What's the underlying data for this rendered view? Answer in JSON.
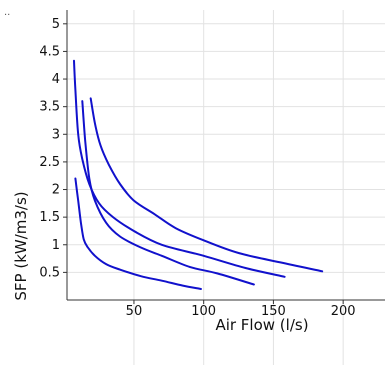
{
  "corner_mark": "..",
  "chart_data": {
    "type": "line",
    "title": "",
    "xlabel": "Air Flow (l/s)",
    "ylabel": "SFP (kW/m3/s)",
    "xlim": [
      2,
      230
    ],
    "ylim": [
      0,
      5.25
    ],
    "x_ticks": [
      50,
      100,
      150,
      200
    ],
    "x_tick_labels": [
      "50",
      "100",
      "150",
      "200"
    ],
    "y_ticks": [
      0.5,
      1,
      1.5,
      2,
      2.5,
      3,
      3.5,
      4,
      4.5,
      5
    ],
    "y_tick_labels": [
      "0.5",
      "1",
      "1.5",
      "2",
      "2.5",
      "3",
      "3.5",
      "4",
      "4.5",
      "5"
    ],
    "grid": true,
    "legend": "none",
    "series_color": "#1111cc",
    "series": [
      {
        "x": [
          8,
          10,
          12,
          14,
          17,
          22,
          30,
          40,
          55,
          70,
          85,
          98
        ],
        "y": [
          2.2,
          1.8,
          1.4,
          1.1,
          0.95,
          0.8,
          0.65,
          0.55,
          0.43,
          0.35,
          0.26,
          0.2
        ]
      },
      {
        "x": [
          13,
          15,
          18,
          22,
          30,
          40,
          55,
          70,
          90,
          110,
          136
        ],
        "y": [
          3.6,
          2.9,
          2.2,
          1.8,
          1.4,
          1.15,
          0.95,
          0.8,
          0.6,
          0.48,
          0.28
        ]
      },
      {
        "x": [
          7,
          8,
          10,
          13,
          18,
          25,
          35,
          50,
          70,
          100,
          130,
          158
        ],
        "y": [
          4.33,
          3.8,
          3.0,
          2.55,
          2.1,
          1.75,
          1.5,
          1.25,
          1.0,
          0.8,
          0.58,
          0.42
        ]
      },
      {
        "x": [
          19,
          22,
          26,
          32,
          40,
          50,
          65,
          80,
          100,
          125,
          155,
          185
        ],
        "y": [
          3.65,
          3.2,
          2.8,
          2.45,
          2.1,
          1.8,
          1.55,
          1.3,
          1.08,
          0.85,
          0.68,
          0.52
        ]
      }
    ]
  }
}
